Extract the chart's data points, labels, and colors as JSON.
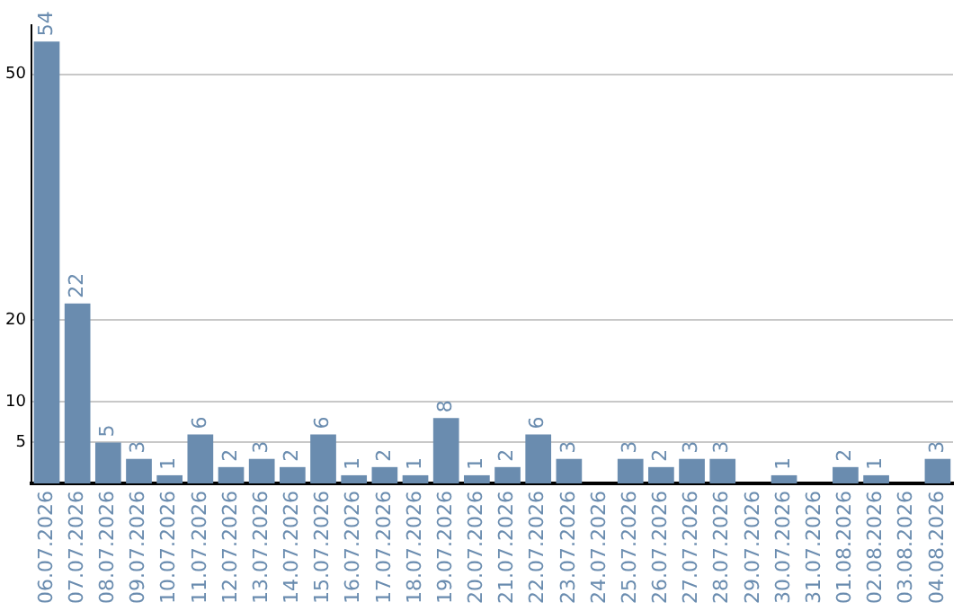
{
  "chart_data": {
    "type": "bar",
    "categories": [
      "06.07.2026",
      "07.07.2026",
      "08.07.2026",
      "09.07.2026",
      "10.07.2026",
      "11.07.2026",
      "12.07.2026",
      "13.07.2026",
      "14.07.2026",
      "15.07.2026",
      "16.07.2026",
      "17.07.2026",
      "18.07.2026",
      "19.07.2026",
      "20.07.2026",
      "21.07.2026",
      "22.07.2026",
      "23.07.2026",
      "24.07.2026",
      "25.07.2026",
      "26.07.2026",
      "27.07.2026",
      "28.07.2026",
      "29.07.2026",
      "30.07.2026",
      "31.07.2026",
      "01.08.2026",
      "02.08.2026",
      "03.08.2026",
      "04.08.2026"
    ],
    "values": [
      54,
      22,
      5,
      3,
      1,
      6,
      2,
      3,
      2,
      6,
      1,
      2,
      1,
      8,
      1,
      2,
      6,
      3,
      null,
      3,
      2,
      3,
      3,
      null,
      1,
      null,
      2,
      1,
      null,
      3
    ],
    "color": "#6a8caf",
    "ylim": [
      0,
      56
    ],
    "yticks": [
      5,
      10,
      20,
      50
    ],
    "grid": "y",
    "data_labels": true,
    "legend": false
  }
}
